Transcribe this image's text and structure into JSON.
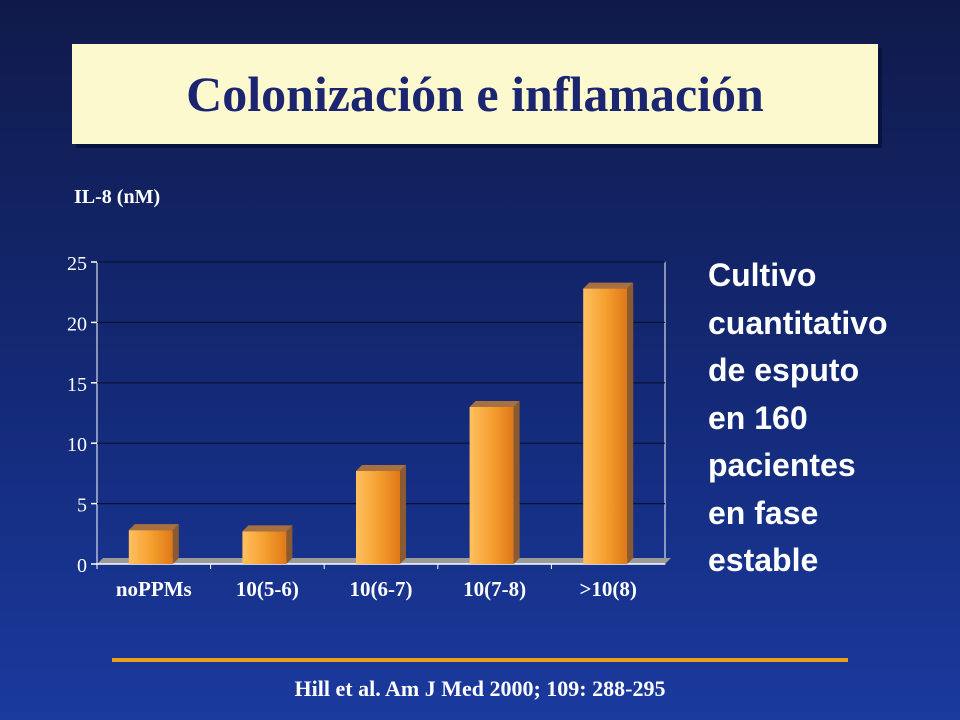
{
  "title": "Colonización e inflamación",
  "side_text": [
    "Cultivo",
    "cuantitativo",
    "de esputo",
    "en 160",
    "pacientes",
    "en fase",
    "estable"
  ],
  "citation": "Hill et al. Am J Med 2000; 109: 288-295",
  "colors": {
    "bar_front": "#f5a030",
    "bar_dark": "#8a5a30",
    "title_bg": "#fdf9cf",
    "title_text": "#1c2670",
    "rule": "#e8a01a"
  },
  "chart_data": {
    "type": "bar",
    "title": "",
    "xlabel": "",
    "ylabel": "IL-8 (nM)",
    "ylim": [
      0,
      25
    ],
    "yticks": [
      0,
      5,
      10,
      15,
      20,
      25
    ],
    "grid": true,
    "categories": [
      "noPPMs",
      "10(5-6)",
      "10(6-7)",
      "10(7-8)",
      ">10(8)"
    ],
    "values": [
      2.8,
      2.7,
      7.7,
      13.0,
      22.8
    ]
  }
}
